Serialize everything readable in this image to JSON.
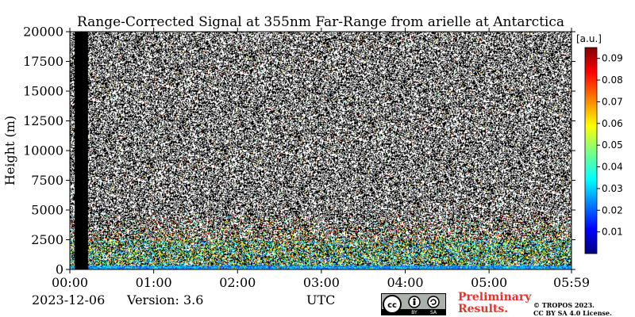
{
  "chart_data": {
    "type": "heatmap",
    "title": "Range-Corrected Signal at 355nm Far-Range from arielle at Antarctica",
    "ylabel": "Height (m)",
    "xlabel": "UTC",
    "ylim": [
      0,
      20000
    ],
    "yticks": [
      "0",
      "2500",
      "5000",
      "7500",
      "10000",
      "12500",
      "15000",
      "17500",
      "20000"
    ],
    "xticks": [
      "00:00",
      "01:00",
      "02:00",
      "03:00",
      "04:00",
      "05:00",
      "05:59"
    ],
    "colorbar": {
      "unit": "[a.u.]",
      "ticks": [
        "0.01",
        "0.02",
        "0.03",
        "0.04",
        "0.05",
        "0.06",
        "0.07",
        "0.08",
        "0.09"
      ],
      "colormap": "jet",
      "range": [
        0,
        0.095
      ]
    },
    "regions": [
      {
        "feature": "no data",
        "time": [
          "00:03",
          "00:13"
        ]
      },
      {
        "feature": "enhanced backscatter (aerosol layer)",
        "height_m": [
          0,
          2500
        ]
      },
      {
        "feature": "noise",
        "height_m": [
          3500,
          20000
        ]
      }
    ]
  },
  "footer": {
    "date": "2023-12-06",
    "version": "Version: 3.6",
    "tz": "UTC",
    "preliminary_line1": "Preliminary",
    "preliminary_line2": "Results.",
    "copyright_line1": "© TROPOS 2023.",
    "copyright_line2": "CC BY SA 4.0 License.",
    "license_badge": [
      "cc",
      "BY",
      "SA"
    ]
  }
}
